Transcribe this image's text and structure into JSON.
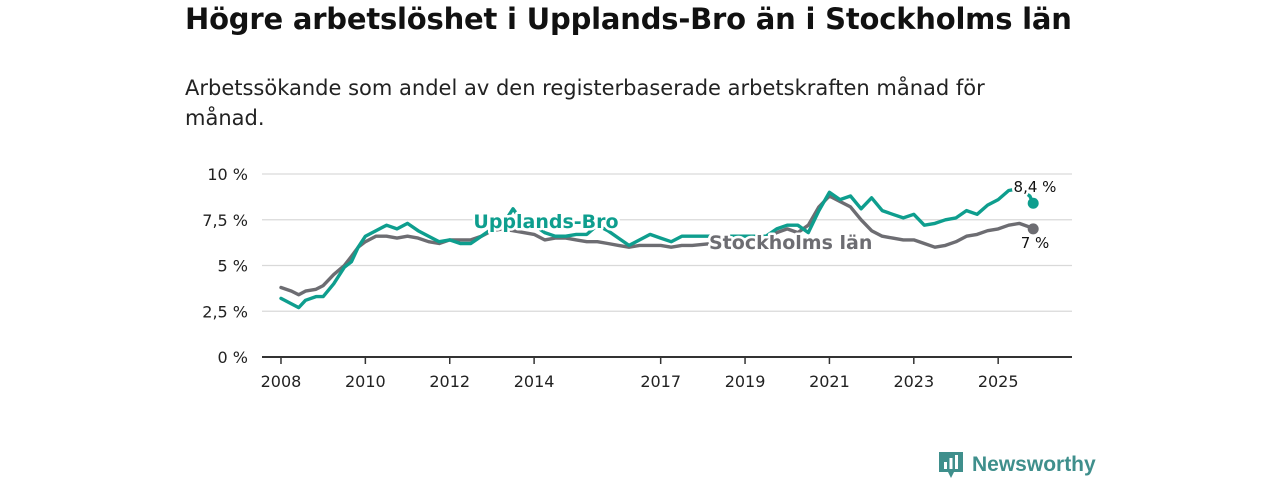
{
  "header": {
    "title": "Högre arbetslöshet i Upplands-Bro än i Stockholms län",
    "subtitle": "Arbetssökande som andel av den registerbaserade arbetskraften månad för månad."
  },
  "brand": {
    "name": "Newsworthy",
    "icon": "newsworthy-logo-icon",
    "color": "#3f8f8c"
  },
  "chart_data": {
    "type": "line",
    "title": "Högre arbetslöshet i Upplands-Bro än i Stockholms län",
    "xlabel": "",
    "ylabel": "",
    "x_range": [
      2007.55,
      2026.75
    ],
    "ylim": [
      0,
      10
    ],
    "y_ticks": [
      0,
      2.5,
      5,
      7.5,
      10
    ],
    "y_tick_labels": [
      "0 %",
      "2,5 %",
      "5 %",
      "7,5 %",
      "10 %"
    ],
    "x_ticks": [
      2008,
      2010,
      2012,
      2014,
      2017,
      2019,
      2021,
      2023,
      2025
    ],
    "x_tick_labels": [
      "2008",
      "2010",
      "2012",
      "2014",
      "2017",
      "2019",
      "2021",
      "2023",
      "2025"
    ],
    "grid": true,
    "series": [
      {
        "name": "Upplands-Bro",
        "color": "#0e9e8e",
        "end_label": "8,4 %",
        "x": [
          2008.0,
          2008.25,
          2008.42,
          2008.58,
          2008.83,
          2009.0,
          2009.25,
          2009.5,
          2009.67,
          2009.83,
          2010.0,
          2010.25,
          2010.5,
          2010.75,
          2011.0,
          2011.25,
          2011.5,
          2011.75,
          2012.0,
          2012.25,
          2012.5,
          2012.75,
          2013.0,
          2013.25,
          2013.5,
          2013.75,
          2014.0,
          2014.25,
          2014.5,
          2014.75,
          2015.0,
          2015.25,
          2015.5,
          2015.75,
          2016.0,
          2016.25,
          2016.5,
          2016.75,
          2017.0,
          2017.25,
          2017.5,
          2017.75,
          2019.5,
          2019.75,
          2020.0,
          2020.25,
          2020.5,
          2020.75,
          2021.0,
          2021.25,
          2021.5,
          2021.75,
          2022.0,
          2022.25,
          2022.5,
          2022.75,
          2023.0,
          2023.25,
          2023.5,
          2023.75,
          2024.0,
          2024.25,
          2024.5,
          2024.75,
          2025.0,
          2025.25,
          2025.5,
          2025.75,
          2025.83
        ],
        "values": [
          3.2,
          2.9,
          2.7,
          3.1,
          3.3,
          3.3,
          4.0,
          4.9,
          5.2,
          6.0,
          6.6,
          6.9,
          7.2,
          7.0,
          7.3,
          6.9,
          6.6,
          6.3,
          6.4,
          6.2,
          6.2,
          6.6,
          7.0,
          7.2,
          8.1,
          7.3,
          7.2,
          6.8,
          6.6,
          6.6,
          6.7,
          6.7,
          7.2,
          6.9,
          6.5,
          6.1,
          6.4,
          6.7,
          6.5,
          6.3,
          6.6,
          6.6,
          6.6,
          7.0,
          7.2,
          7.2,
          6.8,
          8.0,
          9.0,
          8.6,
          8.8,
          8.1,
          8.7,
          8.0,
          7.8,
          7.6,
          7.8,
          7.2,
          7.3,
          7.5,
          7.6,
          8.0,
          7.8,
          8.3,
          8.6,
          9.1,
          9.2,
          8.8,
          8.4
        ]
      },
      {
        "name": "Stockholms län",
        "color": "#6d6d72",
        "end_label": "7 %",
        "x": [
          2008.0,
          2008.25,
          2008.42,
          2008.58,
          2008.83,
          2009.0,
          2009.25,
          2009.5,
          2009.67,
          2009.83,
          2010.0,
          2010.25,
          2010.5,
          2010.75,
          2011.0,
          2011.25,
          2011.5,
          2011.75,
          2012.0,
          2012.25,
          2012.5,
          2012.75,
          2013.0,
          2013.25,
          2013.5,
          2013.75,
          2014.0,
          2014.25,
          2014.5,
          2014.75,
          2015.0,
          2015.25,
          2015.5,
          2015.75,
          2016.0,
          2016.25,
          2016.5,
          2016.75,
          2017.0,
          2017.25,
          2017.5,
          2017.75,
          2019.5,
          2019.75,
          2020.0,
          2020.25,
          2020.5,
          2020.75,
          2021.0,
          2021.25,
          2021.5,
          2021.75,
          2022.0,
          2022.25,
          2022.5,
          2022.75,
          2023.0,
          2023.25,
          2023.5,
          2023.75,
          2024.0,
          2024.25,
          2024.5,
          2024.75,
          2025.0,
          2025.25,
          2025.5,
          2025.75,
          2025.83
        ],
        "values": [
          3.8,
          3.6,
          3.4,
          3.6,
          3.7,
          3.9,
          4.5,
          5.0,
          5.5,
          6.0,
          6.3,
          6.6,
          6.6,
          6.5,
          6.6,
          6.5,
          6.3,
          6.2,
          6.4,
          6.4,
          6.4,
          6.6,
          6.9,
          7.0,
          6.9,
          6.8,
          6.7,
          6.4,
          6.5,
          6.5,
          6.4,
          6.3,
          6.3,
          6.2,
          6.1,
          6.0,
          6.1,
          6.1,
          6.1,
          6.0,
          6.1,
          6.1,
          6.5,
          6.8,
          7.0,
          6.8,
          7.2,
          8.2,
          8.8,
          8.5,
          8.2,
          7.5,
          6.9,
          6.6,
          6.5,
          6.4,
          6.4,
          6.2,
          6.0,
          6.1,
          6.3,
          6.6,
          6.7,
          6.9,
          7.0,
          7.2,
          7.3,
          7.1,
          7.0
        ]
      }
    ]
  }
}
